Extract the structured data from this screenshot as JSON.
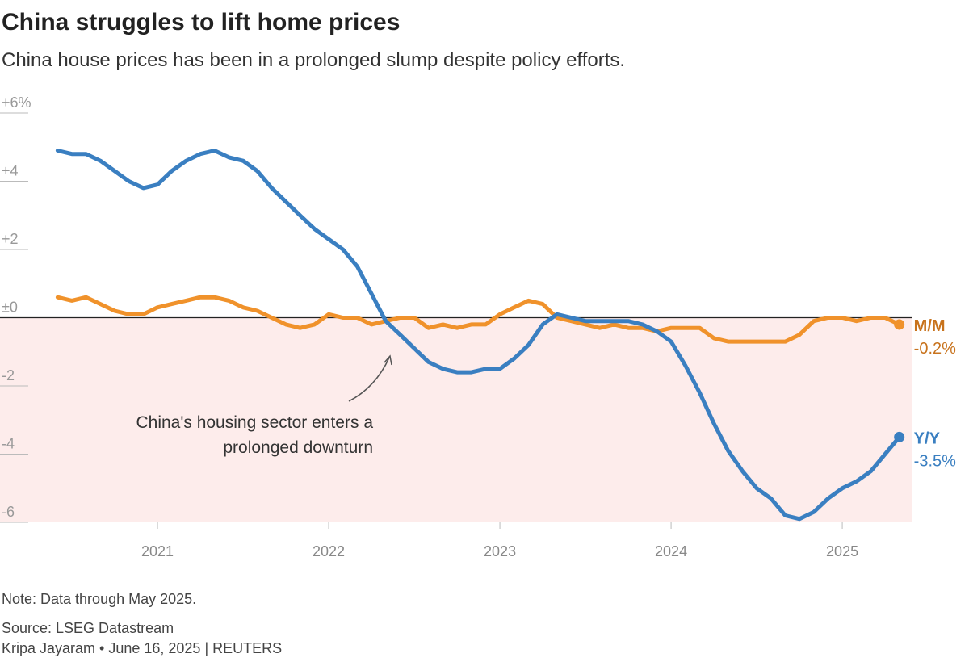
{
  "chart_data": {
    "type": "line",
    "title": "China struggles to lift home prices",
    "subtitle": "China house prices has been in a prolonged slump despite policy efforts.",
    "annotation": "China's housing sector enters a prolonged downturn",
    "note": "Note: Data through May 2025.",
    "source": "Source: LSEG Datastream",
    "byline": "Kripa Jayaram • June 16, 2025 | REUTERS",
    "x": [
      2020.417,
      2020.5,
      2020.583,
      2020.667,
      2020.75,
      2020.833,
      2020.917,
      2021,
      2021.083,
      2021.167,
      2021.25,
      2021.333,
      2021.417,
      2021.5,
      2021.583,
      2021.667,
      2021.75,
      2021.833,
      2021.917,
      2022,
      2022.083,
      2022.167,
      2022.25,
      2022.333,
      2022.417,
      2022.5,
      2022.583,
      2022.667,
      2022.75,
      2022.833,
      2022.917,
      2023,
      2023.083,
      2023.167,
      2023.25,
      2023.333,
      2023.417,
      2023.5,
      2023.583,
      2023.667,
      2023.75,
      2023.833,
      2023.917,
      2024,
      2024.083,
      2024.167,
      2024.25,
      2024.333,
      2024.417,
      2024.5,
      2024.583,
      2024.667,
      2024.75,
      2024.833,
      2024.917,
      2025,
      2025.083,
      2025.167,
      2025.25,
      2025.333
    ],
    "series": [
      {
        "name": "M/M",
        "color": "#f0922b",
        "label_color": "#c8731d",
        "end_label": "-0.2%",
        "values": [
          0.6,
          0.5,
          0.6,
          0.4,
          0.2,
          0.1,
          0.1,
          0.3,
          0.4,
          0.5,
          0.6,
          0.6,
          0.5,
          0.3,
          0.2,
          0.0,
          -0.2,
          -0.3,
          -0.2,
          0.1,
          0.0,
          0.0,
          -0.2,
          -0.1,
          0.0,
          0.0,
          -0.3,
          -0.2,
          -0.3,
          -0.2,
          -0.2,
          0.1,
          0.3,
          0.5,
          0.4,
          0.0,
          -0.1,
          -0.2,
          -0.3,
          -0.2,
          -0.3,
          -0.3,
          -0.4,
          -0.3,
          -0.3,
          -0.3,
          -0.6,
          -0.7,
          -0.7,
          -0.7,
          -0.7,
          -0.7,
          -0.5,
          -0.1,
          0.0,
          0.0,
          -0.1,
          0.0,
          0.0,
          -0.2
        ]
      },
      {
        "name": "Y/Y",
        "color": "#3a7fc1",
        "label_color": "#3a7fc1",
        "end_label": "-3.5%",
        "values": [
          4.9,
          4.8,
          4.8,
          4.6,
          4.3,
          4.0,
          3.8,
          3.9,
          4.3,
          4.6,
          4.8,
          4.9,
          4.7,
          4.6,
          4.3,
          3.8,
          3.4,
          3.0,
          2.6,
          2.3,
          2.0,
          1.5,
          0.7,
          -0.1,
          -0.5,
          -0.9,
          -1.3,
          -1.5,
          -1.6,
          -1.6,
          -1.5,
          -1.5,
          -1.2,
          -0.8,
          -0.2,
          0.1,
          0.0,
          -0.1,
          -0.1,
          -0.1,
          -0.1,
          -0.2,
          -0.4,
          -0.7,
          -1.4,
          -2.2,
          -3.1,
          -3.9,
          -4.5,
          -5.0,
          -5.3,
          -5.8,
          -5.9,
          -5.7,
          -5.3,
          -5.0,
          -4.8,
          -4.5,
          -4.0,
          -3.5
        ]
      }
    ],
    "xlim": [
      2020.08,
      2025.41
    ],
    "xticks": [
      2021,
      2022,
      2023,
      2024,
      2025
    ],
    "ylim": [
      -6,
      6
    ],
    "yticks": [
      {
        "value": 6,
        "label": "+6%"
      },
      {
        "value": 4,
        "label": "+4"
      },
      {
        "value": 2,
        "label": "+2"
      },
      {
        "value": 0,
        "label": "±0"
      },
      -2,
      -4,
      -6
    ],
    "negative_shading": "#fdeceb"
  }
}
